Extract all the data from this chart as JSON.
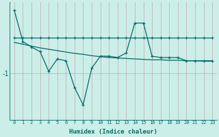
{
  "xlabel": "Humidex (Indice chaleur)",
  "bg_color": "#cceee8",
  "grid_color": "#c0a8a8",
  "line_color": "#006b6b",
  "xlim": [
    -0.5,
    23.5
  ],
  "ylim": [
    -2.0,
    0.55
  ],
  "yticks": [
    -1
  ],
  "ytick_labels": [
    "-1"
  ],
  "x": [
    0,
    1,
    2,
    3,
    4,
    5,
    6,
    7,
    8,
    9,
    10,
    11,
    12,
    13,
    14,
    15,
    16,
    17,
    18,
    19,
    20,
    21,
    22,
    23
  ],
  "y_jagged": [
    0.38,
    -0.3,
    -0.42,
    -0.52,
    -0.95,
    -0.68,
    -0.72,
    -1.3,
    -1.68,
    -0.88,
    -0.62,
    -0.62,
    -0.65,
    -0.55,
    0.1,
    0.1,
    -0.62,
    -0.65,
    -0.65,
    -0.65,
    -0.72,
    -0.72,
    -0.72,
    -0.72
  ],
  "y_upper": [
    -0.22,
    -0.22,
    -0.22,
    -0.22,
    -0.22,
    -0.22,
    -0.22,
    -0.22,
    -0.22,
    -0.22,
    -0.22,
    -0.22,
    -0.22,
    -0.22,
    -0.22,
    -0.22,
    -0.22,
    -0.22,
    -0.22,
    -0.22,
    -0.22,
    -0.22,
    -0.22,
    -0.22
  ],
  "y_lower": [
    -0.32,
    -0.36,
    -0.4,
    -0.44,
    -0.47,
    -0.5,
    -0.53,
    -0.56,
    -0.58,
    -0.61,
    -0.63,
    -0.65,
    -0.66,
    -0.67,
    -0.68,
    -0.69,
    -0.7,
    -0.7,
    -0.71,
    -0.71,
    -0.72,
    -0.72,
    -0.73,
    -0.73
  ]
}
